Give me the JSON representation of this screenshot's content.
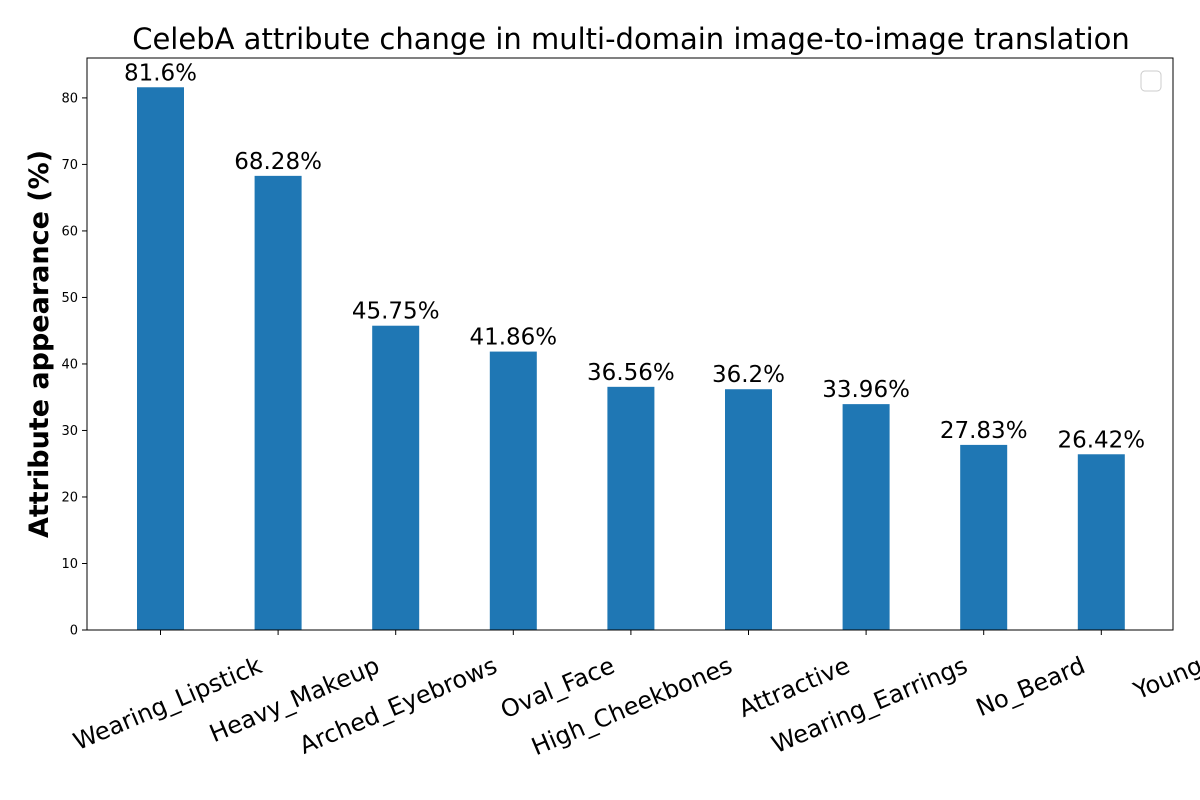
{
  "chart_data": {
    "type": "bar",
    "title": "CelebA attribute change in multi-domain image-to-image translation",
    "xlabel": "",
    "ylabel": "Attribute appearance (%)",
    "categories": [
      "Wearing_Lipstick",
      "Heavy_Makeup",
      "Arched_Eyebrows",
      "Oval_Face",
      "High_Cheekbones",
      "Attractive",
      "Wearing_Earrings",
      "No_Beard",
      "Young"
    ],
    "values": [
      81.6,
      68.28,
      45.75,
      41.86,
      36.56,
      36.2,
      33.96,
      27.83,
      26.42
    ],
    "data_labels": [
      "81.6%",
      "68.28%",
      "45.75%",
      "41.86%",
      "36.56%",
      "36.2%",
      "33.96%",
      "27.83%",
      "26.42%"
    ],
    "ylim": [
      0,
      86
    ],
    "yticks": [
      0,
      10,
      20,
      30,
      40,
      50,
      60,
      70,
      80
    ],
    "ytick_labels": [
      "0",
      "10",
      "20",
      "30",
      "40",
      "50",
      "60",
      "70",
      "80"
    ],
    "grid": false,
    "legend": {
      "position": "top-right",
      "entries": []
    },
    "bar_color": "#1f77b4"
  }
}
